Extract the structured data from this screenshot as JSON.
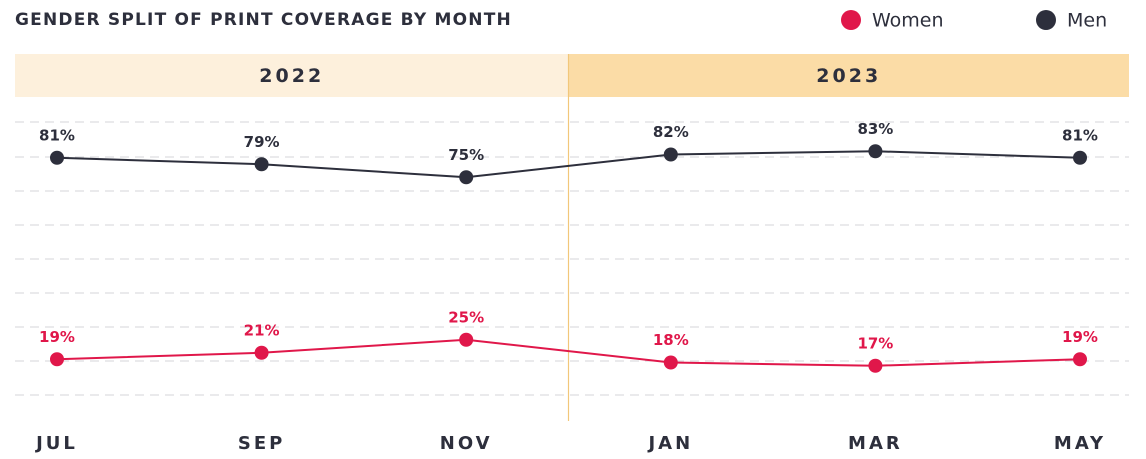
{
  "chart_data": {
    "type": "line",
    "title": "GENDER SPLIT OF PRINT COVERAGE BY MONTH",
    "categories": [
      "JUL",
      "SEP",
      "NOV",
      "JAN",
      "MAR",
      "MAY"
    ],
    "periods": [
      "2022",
      "2023"
    ],
    "period_colors": [
      "#fdf0dc",
      "#fbdca6"
    ],
    "series": [
      {
        "name": "Women",
        "color": "#e0174a",
        "values": [
          19,
          21,
          25,
          18,
          17,
          19
        ],
        "value_labels": [
          "19%",
          "21%",
          "25%",
          "18%",
          "17%",
          "19%"
        ]
      },
      {
        "name": "Men",
        "color": "#2d2f3c",
        "values": [
          81,
          79,
          75,
          82,
          83,
          81
        ],
        "value_labels": [
          "81%",
          "79%",
          "75%",
          "82%",
          "83%",
          "81%"
        ]
      }
    ],
    "ylim": [
      0,
      100
    ],
    "legend": "top-right"
  }
}
